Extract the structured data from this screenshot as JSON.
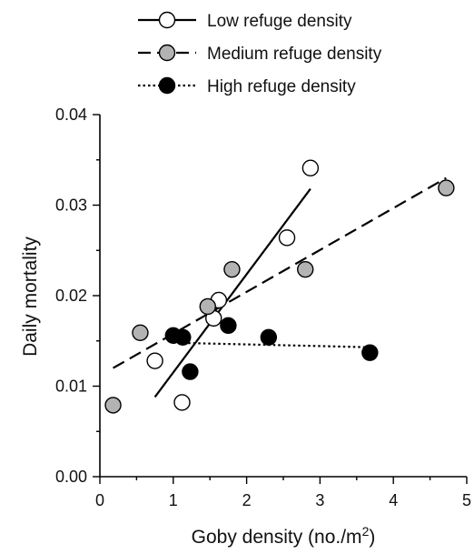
{
  "chart_data": {
    "type": "scatter",
    "title": "",
    "xlabel": "Goby density (no./m",
    "xlabel_superscript": "2",
    "xlabel_suffix": ")",
    "ylabel": "Daily mortality",
    "xlim": [
      0,
      5
    ],
    "ylim": [
      0,
      0.04
    ],
    "x_ticks": [
      "0",
      "1",
      "2",
      "3",
      "4",
      "5"
    ],
    "y_ticks": [
      "0.00",
      "0.01",
      "0.02",
      "0.03",
      "0.04"
    ],
    "grid": false,
    "legend_position": "top",
    "series": [
      {
        "name": "Low refuge density",
        "marker_fill": "#ffffff",
        "line_style": "solid",
        "points": [
          [
            0.75,
            0.0128
          ],
          [
            1.12,
            0.0082
          ],
          [
            1.55,
            0.0175
          ],
          [
            1.62,
            0.0195
          ],
          [
            2.55,
            0.0264
          ],
          [
            2.87,
            0.0341
          ]
        ],
        "fit": [
          [
            0.75,
            0.0088
          ],
          [
            2.87,
            0.0318
          ]
        ]
      },
      {
        "name": "Medium refuge density",
        "marker_fill": "#b3b3b3",
        "line_style": "dashed",
        "points": [
          [
            0.18,
            0.0079
          ],
          [
            0.55,
            0.0159
          ],
          [
            1.47,
            0.0188
          ],
          [
            1.8,
            0.0229
          ],
          [
            2.8,
            0.0229
          ],
          [
            4.72,
            0.0319
          ]
        ],
        "fit": [
          [
            0.18,
            0.012
          ],
          [
            4.72,
            0.033
          ]
        ]
      },
      {
        "name": "High refuge density",
        "marker_fill": "#000000",
        "line_style": "dotted",
        "points": [
          [
            1.0,
            0.0156
          ],
          [
            1.13,
            0.0154
          ],
          [
            1.23,
            0.0116
          ],
          [
            1.75,
            0.0167
          ],
          [
            2.3,
            0.0154
          ],
          [
            3.68,
            0.0137
          ]
        ],
        "fit": [
          [
            1.0,
            0.0148
          ],
          [
            3.68,
            0.0143
          ]
        ]
      }
    ]
  }
}
